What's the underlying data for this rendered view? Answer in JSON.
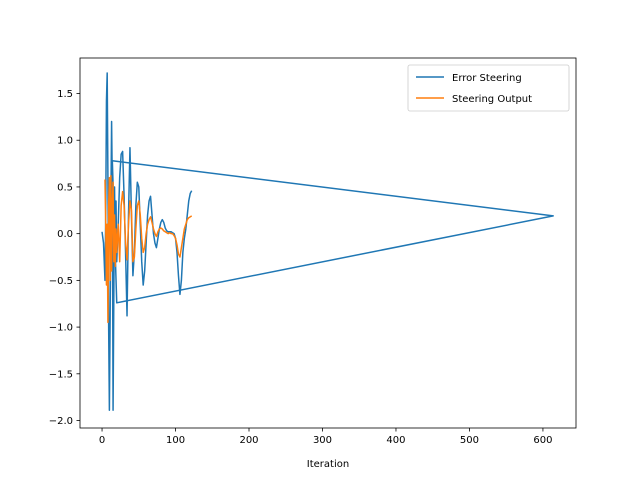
{
  "chart_data": {
    "type": "line",
    "xlabel": "Iteration",
    "ylabel": "",
    "title": "",
    "xlim": [
      -30,
      645
    ],
    "ylim": [
      -2.08,
      1.88
    ],
    "xticks": [
      0,
      100,
      200,
      300,
      400,
      500,
      600
    ],
    "yticks": [
      -2.0,
      -1.5,
      -1.0,
      -0.5,
      0.0,
      0.5,
      1.0,
      1.5
    ],
    "ytick_labels": [
      "−2.0",
      "−1.5",
      "−1.0",
      "−0.5",
      "0.0",
      "0.5",
      "1.0",
      "1.5"
    ],
    "grid": false,
    "legend_position": "top-right",
    "series": [
      {
        "name": "Error Steering",
        "color": "#1f77b4",
        "points": [
          [
            0,
            0.02
          ],
          [
            2,
            -0.1
          ],
          [
            4,
            -0.5
          ],
          [
            5,
            0.2
          ],
          [
            6,
            1.42
          ],
          [
            7,
            1.72
          ],
          [
            8,
            0.6
          ],
          [
            9,
            -1.0
          ],
          [
            10,
            -1.89
          ],
          [
            11,
            -0.9
          ],
          [
            12,
            0.3
          ],
          [
            13,
            1.2
          ],
          [
            14,
            0.5
          ],
          [
            15,
            -1.89
          ],
          [
            16,
            -0.7
          ],
          [
            17,
            0.5
          ],
          [
            18,
            -0.2
          ],
          [
            19,
            0.35
          ],
          [
            20,
            -0.3
          ],
          [
            22,
            0.1
          ],
          [
            24,
            0.6
          ],
          [
            26,
            0.85
          ],
          [
            28,
            0.88
          ],
          [
            30,
            0.4
          ],
          [
            32,
            -0.2
          ],
          [
            34,
            -0.88
          ],
          [
            36,
            0.2
          ],
          [
            38,
            0.92
          ],
          [
            40,
            0.2
          ],
          [
            42,
            -0.45
          ],
          [
            44,
            -0.2
          ],
          [
            46,
            0.3
          ],
          [
            48,
            0.55
          ],
          [
            50,
            0.5
          ],
          [
            52,
            0.1
          ],
          [
            54,
            -0.3
          ],
          [
            56,
            -0.55
          ],
          [
            58,
            -0.4
          ],
          [
            60,
            -0.1
          ],
          [
            62,
            0.2
          ],
          [
            64,
            0.35
          ],
          [
            66,
            0.4
          ],
          [
            68,
            0.2
          ],
          [
            70,
            0.0
          ],
          [
            72,
            -0.1
          ],
          [
            74,
            -0.15
          ],
          [
            76,
            -0.05
          ],
          [
            78,
            0.05
          ],
          [
            80,
            0.12
          ],
          [
            82,
            0.15
          ],
          [
            84,
            0.12
          ],
          [
            86,
            0.06
          ],
          [
            88,
            0.03
          ],
          [
            90,
            0.02
          ],
          [
            92,
            0.02
          ],
          [
            94,
            0.02
          ],
          [
            96,
            0.01
          ],
          [
            98,
            0.0
          ],
          [
            100,
            -0.05
          ],
          [
            102,
            -0.2
          ],
          [
            104,
            -0.45
          ],
          [
            106,
            -0.65
          ],
          [
            108,
            -0.5
          ],
          [
            110,
            -0.2
          ],
          [
            112,
            -0.05
          ],
          [
            114,
            0.05
          ],
          [
            116,
            0.2
          ],
          [
            118,
            0.35
          ],
          [
            120,
            0.43
          ],
          [
            122,
            0.46
          ]
        ],
        "outline": [
          [
            14,
            0.78
          ],
          [
            614,
            0.19
          ],
          [
            20,
            -0.74
          ],
          [
            14,
            0.78
          ]
        ]
      },
      {
        "name": "Steering Output",
        "color": "#ff7f0e",
        "points": [
          [
            4,
            0.58
          ],
          [
            5,
            0.1
          ],
          [
            6,
            -0.55
          ],
          [
            7,
            0.1
          ],
          [
            8,
            -0.95
          ],
          [
            9,
            0.3
          ],
          [
            10,
            0.6
          ],
          [
            11,
            -0.5
          ],
          [
            12,
            0.62
          ],
          [
            13,
            -0.4
          ],
          [
            14,
            0.3
          ],
          [
            15,
            0.55
          ],
          [
            16,
            -0.3
          ],
          [
            17,
            0.2
          ],
          [
            18,
            -0.35
          ],
          [
            19,
            0.05
          ],
          [
            20,
            -0.2
          ],
          [
            22,
            0.1
          ],
          [
            24,
            -0.3
          ],
          [
            26,
            0.3
          ],
          [
            28,
            0.45
          ],
          [
            30,
            0.3
          ],
          [
            32,
            -0.1
          ],
          [
            34,
            -0.28
          ],
          [
            36,
            0.1
          ],
          [
            38,
            0.35
          ],
          [
            40,
            0.25
          ],
          [
            42,
            -0.3
          ],
          [
            44,
            -0.25
          ],
          [
            46,
            0.05
          ],
          [
            48,
            0.3
          ],
          [
            50,
            0.35
          ],
          [
            52,
            0.2
          ],
          [
            54,
            -0.05
          ],
          [
            56,
            -0.2
          ],
          [
            58,
            -0.15
          ],
          [
            60,
            0.0
          ],
          [
            62,
            0.1
          ],
          [
            64,
            0.15
          ],
          [
            66,
            0.18
          ],
          [
            68,
            0.12
          ],
          [
            70,
            0.05
          ],
          [
            72,
            0.0
          ],
          [
            74,
            -0.03
          ],
          [
            76,
            0.02
          ],
          [
            78,
            0.05
          ],
          [
            80,
            0.06
          ],
          [
            82,
            0.05
          ],
          [
            84,
            0.03
          ],
          [
            86,
            0.02
          ],
          [
            88,
            0.01
          ],
          [
            90,
            0.0
          ],
          [
            92,
            0.01
          ],
          [
            94,
            0.0
          ],
          [
            96,
            0.0
          ],
          [
            98,
            -0.02
          ],
          [
            100,
            -0.05
          ],
          [
            102,
            -0.12
          ],
          [
            104,
            -0.22
          ],
          [
            106,
            -0.25
          ],
          [
            108,
            -0.15
          ],
          [
            110,
            -0.05
          ],
          [
            112,
            0.05
          ],
          [
            114,
            0.1
          ],
          [
            116,
            0.15
          ],
          [
            118,
            0.17
          ],
          [
            120,
            0.18
          ],
          [
            122,
            0.19
          ]
        ]
      }
    ]
  }
}
